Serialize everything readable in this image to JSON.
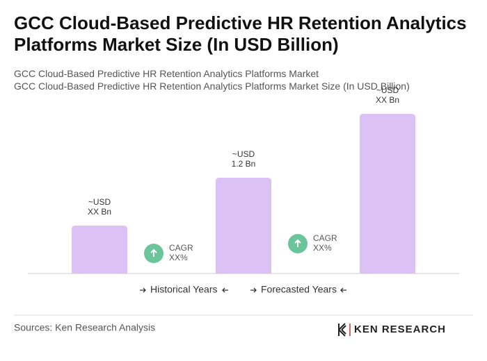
{
  "chart_data": {
    "type": "bar",
    "title": "GCC Cloud-Based Predictive HR Retention Analytics Platforms Market Size (In USD Billion)",
    "subtitle": "GCC Cloud-Based Predictive HR Retention Analytics Platforms Market",
    "caption": "GCC Cloud-Based Predictive HR Retention Analytics Platforms Market Size (In USD Billion)",
    "categories": [
      null,
      null,
      null
    ],
    "values": [
      0.6,
      1.2,
      2.0
    ],
    "value_labels": [
      [
        "~USD",
        "XX Bn"
      ],
      [
        "~USD",
        "1.2 Bn"
      ],
      [
        "~USD",
        "XX Bn"
      ]
    ],
    "color": "#dcc1f5",
    "annotations": [
      [
        "CAGR",
        "XX%"
      ],
      [
        "CAGR",
        "XX%"
      ]
    ],
    "annotation_color": "#6cc59a",
    "legend": [
      "Historical Years",
      "Forecasted Years"
    ],
    "source": "Sources: Ken Research Analysis",
    "brand": "KEN RESEARCH"
  }
}
